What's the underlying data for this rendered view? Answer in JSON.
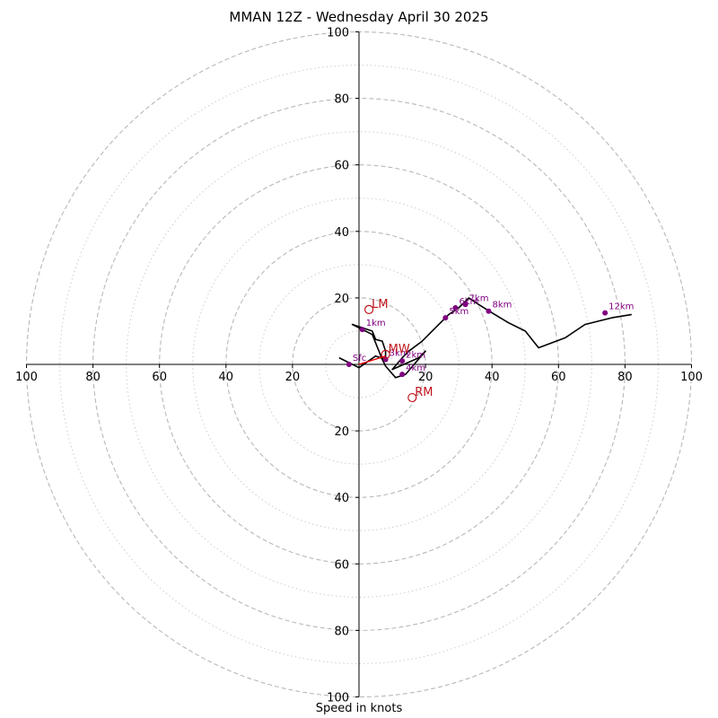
{
  "chart_data": {
    "type": "line",
    "title": "MMAN 12Z - Wednesday April 30 2025",
    "xlabel": "Speed in knots",
    "ylabel": "",
    "xlim": [
      -100,
      100
    ],
    "ylim": [
      -100,
      100
    ],
    "grid": true,
    "range_rings_major": [
      20,
      40,
      60,
      80,
      100
    ],
    "range_rings_minor": [
      10,
      30,
      50,
      70,
      90
    ],
    "tick_labels": [
      "100",
      "80",
      "60",
      "40",
      "20",
      "20",
      "40",
      "60",
      "80",
      "100"
    ],
    "tick_values": [
      -100,
      -80,
      -60,
      -40,
      -20,
      20,
      40,
      60,
      80,
      100
    ],
    "series": [
      {
        "color": "#000000",
        "points": [
          [
            -6,
            2
          ],
          [
            0,
            -1
          ],
          [
            5,
            2.5
          ],
          [
            8,
            1.5
          ],
          [
            8,
            4
          ],
          [
            7,
            7
          ],
          [
            5,
            7.5
          ],
          [
            4,
            10
          ],
          [
            -2,
            12
          ],
          [
            4,
            9
          ],
          [
            7,
            1.5
          ],
          [
            8,
            -0.5
          ],
          [
            11,
            -4
          ],
          [
            14,
            -3
          ],
          [
            20,
            4
          ],
          [
            18,
            2
          ],
          [
            10,
            -1.5
          ],
          [
            13,
            2
          ],
          [
            15,
            4
          ],
          [
            19,
            7
          ],
          [
            23,
            11
          ],
          [
            27,
            15
          ],
          [
            30,
            17
          ],
          [
            33,
            20
          ],
          [
            36,
            18
          ],
          [
            40,
            15.5
          ],
          [
            45,
            12.5
          ],
          [
            50,
            10
          ],
          [
            54,
            5
          ],
          [
            62,
            8
          ],
          [
            68,
            12
          ],
          [
            76,
            14
          ],
          [
            82,
            15
          ]
        ]
      },
      {
        "color": "#ee0000",
        "points": [
          [
            0,
            0
          ],
          [
            8,
            2.5
          ]
        ]
      }
    ],
    "height_markers": [
      {
        "label": "Sfc",
        "x": -3,
        "y": 0
      },
      {
        "label": "1km",
        "x": 1,
        "y": 10.5
      },
      {
        "label": "2km",
        "x": 13,
        "y": 1
      },
      {
        "label": "3km",
        "x": 8,
        "y": 1.5
      },
      {
        "label": "4km",
        "x": 13,
        "y": -3
      },
      {
        "label": "5km",
        "x": 26,
        "y": 14
      },
      {
        "label": "6km",
        "x": 29,
        "y": 17
      },
      {
        "label": "7km",
        "x": 32,
        "y": 18
      },
      {
        "label": "8km",
        "x": 39,
        "y": 16
      },
      {
        "label": "12km",
        "x": 74,
        "y": 15.5
      }
    ],
    "storm_motion": [
      {
        "label": "LM",
        "x": 3,
        "y": 16.5
      },
      {
        "label": "MW",
        "x": 8,
        "y": 3
      },
      {
        "label": "RM",
        "x": 16,
        "y": -10
      }
    ],
    "colors": {
      "hodograph": "#000000",
      "mean_wind_vector": "#ee0000",
      "height_marker": "#800080",
      "storm_motion": "#c0141c",
      "grid": "#b8b8b8"
    }
  }
}
